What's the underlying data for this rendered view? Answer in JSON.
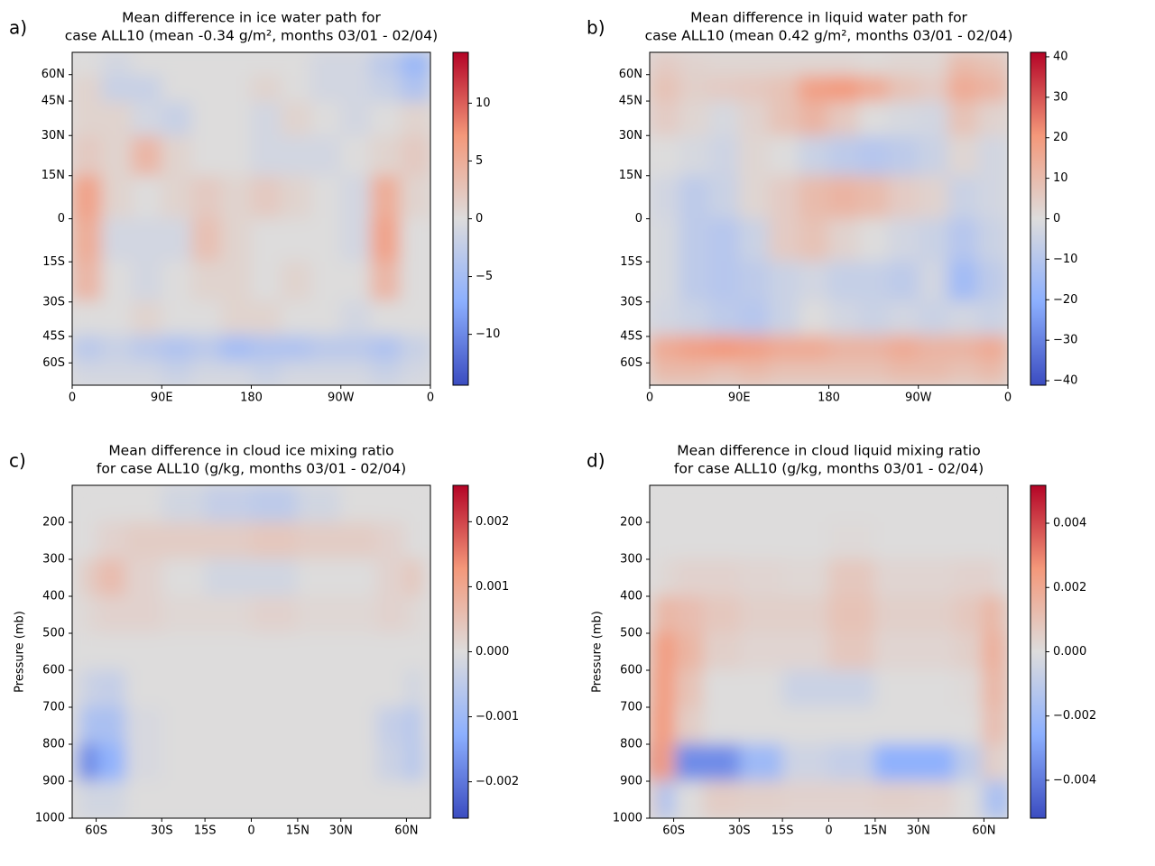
{
  "chart_data": [
    {
      "type": "map",
      "panel_label": "a)",
      "title": [
        "Mean difference in ice water path for",
        "case ALL10 (mean -0.34 g/m², months 03/01 - 02/04)"
      ],
      "projection": "equal-area",
      "x": [
        15,
        45,
        75,
        105,
        135,
        165,
        195,
        225,
        255,
        285,
        315,
        345
      ],
      "y": [
        67.5,
        52.5,
        37.5,
        22.5,
        7.5,
        -7.5,
        -22.5,
        -37.5,
        -52.5,
        -67.5
      ],
      "values": [
        [
          0,
          -1,
          0,
          0,
          0,
          0,
          0,
          0,
          -1,
          -1,
          -3,
          -6
        ],
        [
          1,
          -2,
          -2,
          0,
          0,
          0,
          1,
          0,
          -1,
          -1,
          -2,
          -4
        ],
        [
          1,
          1,
          -1,
          -2,
          0,
          0,
          -1,
          1,
          0,
          -1,
          0,
          1
        ],
        [
          2,
          1,
          4,
          1,
          0,
          0,
          -1,
          -1,
          -1,
          0,
          1,
          2
        ],
        [
          6,
          1,
          0,
          1,
          2,
          1,
          2,
          1,
          0,
          -1,
          5,
          1
        ],
        [
          5,
          -1,
          -1,
          -1,
          3,
          1,
          0,
          0,
          0,
          -1,
          6,
          0
        ],
        [
          4,
          0,
          -1,
          0,
          1,
          1,
          0,
          1,
          0,
          0,
          4,
          0
        ],
        [
          0,
          0,
          1,
          0,
          0,
          1,
          1,
          0,
          0,
          -1,
          0,
          0
        ],
        [
          -3,
          -2,
          -3,
          -4,
          -3,
          -5,
          -4,
          -4,
          -3,
          -3,
          -4,
          -2
        ],
        [
          -1,
          -1,
          -1,
          -2,
          -1,
          -1,
          -2,
          -1,
          -1,
          -1,
          -2,
          -1
        ]
      ],
      "xlim": [
        0,
        360
      ],
      "ylim": [
        -90,
        90
      ],
      "xticks": [
        0,
        {
          "value": 90,
          "label": "90E"
        },
        180,
        {
          "value": 270,
          "label": "90W"
        },
        {
          "value": 360,
          "label": "0"
        }
      ],
      "yticks": [
        {
          "value": 60,
          "label": "60N"
        },
        {
          "value": 45,
          "label": "45N"
        },
        {
          "value": 30,
          "label": "30N"
        },
        {
          "value": 15,
          "label": "15N"
        },
        0,
        {
          "value": -15,
          "label": "15S"
        },
        {
          "value": -30,
          "label": "30S"
        },
        {
          "value": -45,
          "label": "45S"
        },
        {
          "value": -60,
          "label": "60S"
        }
      ],
      "colormap": [
        "#3b4cc0",
        "#8caffe",
        "#dddcdc",
        "#f4987a",
        "#b40426"
      ],
      "clim": [
        -14.4,
        14.4
      ],
      "cticks": [
        10,
        5,
        0,
        {
          "value": -5,
          "label": "−5"
        },
        {
          "value": -10,
          "label": "−10"
        }
      ]
    },
    {
      "type": "map",
      "panel_label": "b)",
      "title": [
        "Mean difference in liquid water path for",
        "case ALL10 (mean 0.42 g/m², months 03/01 - 02/04)"
      ],
      "projection": "equal-area",
      "x": [
        15,
        45,
        75,
        105,
        135,
        165,
        195,
        225,
        255,
        285,
        315,
        345
      ],
      "y": [
        67.5,
        52.5,
        37.5,
        22.5,
        7.5,
        -7.5,
        -22.5,
        -37.5,
        -52.5,
        -67.5
      ],
      "values": [
        [
          5,
          3,
          2,
          2,
          2,
          2,
          2,
          1,
          2,
          2,
          10,
          8
        ],
        [
          8,
          4,
          5,
          6,
          8,
          18,
          20,
          15,
          8,
          5,
          15,
          12
        ],
        [
          5,
          2,
          -2,
          3,
          8,
          12,
          6,
          0,
          -2,
          -3,
          8,
          3
        ],
        [
          0,
          -2,
          -4,
          2,
          0,
          -5,
          -8,
          -10,
          -8,
          -5,
          2,
          -3
        ],
        [
          -3,
          -8,
          -5,
          2,
          5,
          10,
          12,
          10,
          5,
          3,
          -5,
          -3
        ],
        [
          -2,
          -8,
          -10,
          -5,
          5,
          8,
          3,
          0,
          -3,
          -5,
          -10,
          -5
        ],
        [
          -2,
          -8,
          -10,
          -8,
          -5,
          -3,
          -6,
          -6,
          -8,
          -3,
          -15,
          -8
        ],
        [
          -3,
          -5,
          -8,
          -10,
          -5,
          0,
          -3,
          -5,
          -3,
          -5,
          -3,
          -5
        ],
        [
          15,
          18,
          20,
          18,
          15,
          15,
          12,
          12,
          15,
          12,
          12,
          15
        ],
        [
          10,
          10,
          8,
          10,
          8,
          8,
          8,
          8,
          10,
          10,
          8,
          10
        ]
      ],
      "xlim": [
        0,
        360
      ],
      "ylim": [
        -90,
        90
      ],
      "xticks": [
        0,
        {
          "value": 90,
          "label": "90E"
        },
        180,
        {
          "value": 270,
          "label": "90W"
        },
        {
          "value": 360,
          "label": "0"
        }
      ],
      "yticks": [
        {
          "value": 60,
          "label": "60N"
        },
        {
          "value": 45,
          "label": "45N"
        },
        {
          "value": 30,
          "label": "30N"
        },
        {
          "value": 15,
          "label": "15N"
        },
        0,
        {
          "value": -15,
          "label": "15S"
        },
        {
          "value": -30,
          "label": "30S"
        },
        {
          "value": -45,
          "label": "45S"
        },
        {
          "value": -60,
          "label": "60S"
        }
      ],
      "colormap": [
        "#3b4cc0",
        "#8caffe",
        "#dddcdc",
        "#f4987a",
        "#b40426"
      ],
      "clim": [
        -41.1,
        41.1
      ],
      "cticks": [
        40,
        30,
        20,
        10,
        0,
        {
          "value": -10,
          "label": "−10"
        },
        {
          "value": -20,
          "label": "−20"
        },
        {
          "value": -30,
          "label": "−30"
        },
        {
          "value": -40,
          "label": "−40"
        }
      ]
    },
    {
      "type": "heatmap",
      "panel_label": "c)",
      "title": [
        "Mean difference in cloud ice mixing ratio",
        "for case ALL10 (g/kg, months 03/01 - 02/04)"
      ],
      "ylabel": "Pressure (mb)",
      "projection": "equal-area",
      "x": [
        -82.5,
        -67.5,
        -52.5,
        -37.5,
        -22.5,
        -7.5,
        7.5,
        22.5,
        37.5,
        52.5,
        67.5,
        82.5
      ],
      "y": [
        150,
        250,
        350,
        450,
        550,
        650,
        750,
        850,
        950
      ],
      "values": [
        [
          0,
          0,
          0,
          0,
          -0.0002,
          -0.0004,
          -0.0005,
          -0.0002,
          0,
          0,
          0,
          0
        ],
        [
          0,
          0,
          0.0002,
          0.0003,
          0.0003,
          0.0003,
          0.0004,
          0.0003,
          0.0003,
          0.0002,
          0,
          0
        ],
        [
          0,
          0.0003,
          0.0006,
          0.0002,
          0,
          -0.0002,
          -0.0002,
          0,
          0,
          0.0002,
          0.0004,
          0
        ],
        [
          0,
          0.0001,
          0.0002,
          0.0002,
          0.0001,
          0.0001,
          0.0002,
          0.0001,
          0.0001,
          0.0002,
          0.0001,
          0
        ],
        [
          0,
          0,
          0,
          0,
          0,
          0,
          0,
          0,
          0,
          0,
          0,
          0
        ],
        [
          0,
          -0.0003,
          -0.0004,
          0,
          0,
          0,
          0,
          0,
          0,
          0,
          -0.0002,
          0
        ],
        [
          0,
          -0.0008,
          -0.0008,
          -0.0001,
          0,
          0,
          0,
          0,
          0,
          -0.0004,
          -0.0006,
          0
        ],
        [
          -0.0004,
          -0.0018,
          -0.0012,
          -0.0001,
          0,
          0,
          0,
          0,
          0,
          -0.0003,
          -0.0006,
          -0.0001
        ],
        [
          0,
          -0.0002,
          -0.0002,
          0,
          0,
          0,
          0,
          0,
          0,
          0,
          0,
          0
        ]
      ],
      "xlim": [
        -90,
        90
      ],
      "ylim": [
        1000,
        100
      ],
      "xticks": [
        {
          "value": -60,
          "label": "60S"
        },
        {
          "value": -30,
          "label": "30S"
        },
        {
          "value": -15,
          "label": "15S"
        },
        0,
        {
          "value": 15,
          "label": "15N"
        },
        {
          "value": 30,
          "label": "30N"
        },
        {
          "value": 60,
          "label": "60N"
        }
      ],
      "yticks": [
        200,
        300,
        400,
        500,
        600,
        700,
        800,
        900,
        1000
      ],
      "colormap": [
        "#3b4cc0",
        "#8caffe",
        "#dddcdc",
        "#f4987a",
        "#b40426"
      ],
      "clim": [
        -0.00256,
        0.00256
      ],
      "cticks": [
        0.002,
        0.001,
        {
          "value": 0,
          "label": "0.000"
        },
        {
          "value": -0.001,
          "label": "−0.001"
        },
        {
          "value": -0.002,
          "label": "−0.002"
        }
      ]
    },
    {
      "type": "heatmap",
      "panel_label": "d)",
      "title": [
        "Mean difference in cloud liquid mixing ratio",
        "for case ALL10 (g/kg, months 03/01 - 02/04)"
      ],
      "ylabel": "Pressure (mb)",
      "projection": "equal-area",
      "x": [
        -82.5,
        -67.5,
        -52.5,
        -37.5,
        -22.5,
        -7.5,
        7.5,
        22.5,
        37.5,
        52.5,
        67.5,
        82.5
      ],
      "y": [
        150,
        250,
        350,
        450,
        550,
        650,
        750,
        850,
        950
      ],
      "values": [
        [
          0,
          0,
          0,
          0,
          0,
          0,
          0,
          0,
          0,
          0,
          0,
          0
        ],
        [
          0,
          0,
          0,
          0,
          0,
          0,
          0.0001,
          0,
          0,
          0,
          0,
          0
        ],
        [
          0,
          0.0002,
          0.0004,
          0.0004,
          0.0003,
          0.0002,
          0.0008,
          0.0003,
          0.0003,
          0.0004,
          0.0004,
          0
        ],
        [
          0.0006,
          0.0015,
          0.0012,
          0.0008,
          0.0005,
          0.0005,
          0.001,
          0.0005,
          0.0005,
          0.0008,
          0.0015,
          0.0008
        ],
        [
          0.0015,
          0.0025,
          0.0015,
          0.0005,
          0.0003,
          0.0003,
          0.0008,
          0.0003,
          0.0003,
          0.0005,
          0.0018,
          0.0012
        ],
        [
          0.0018,
          0.0025,
          0.001,
          0,
          0,
          -0.0006,
          -0.0006,
          0,
          0,
          0.0001,
          0.0015,
          0.0012
        ],
        [
          0.0022,
          0.0025,
          0.0006,
          0,
          0,
          0,
          0,
          0,
          0,
          0,
          0.0012,
          0.001
        ],
        [
          0.0032,
          0.0022,
          -0.0035,
          -0.0035,
          -0.002,
          -0.0005,
          -0.0008,
          -0.0025,
          -0.0025,
          -0.001,
          0.0006,
          0.0003
        ],
        [
          0.0006,
          -0.0015,
          0,
          0.0006,
          0.0005,
          0.0004,
          0.0004,
          0.0005,
          0.0004,
          0,
          -0.0015,
          -0.002
        ]
      ],
      "xlim": [
        -90,
        90
      ],
      "ylim": [
        1000,
        100
      ],
      "xticks": [
        {
          "value": -60,
          "label": "60S"
        },
        {
          "value": -30,
          "label": "30S"
        },
        {
          "value": -15,
          "label": "15S"
        },
        0,
        {
          "value": 15,
          "label": "15N"
        },
        {
          "value": 30,
          "label": "30N"
        },
        {
          "value": 60,
          "label": "60N"
        }
      ],
      "yticks": [
        200,
        300,
        400,
        500,
        600,
        700,
        800,
        900,
        1000
      ],
      "colormap": [
        "#3b4cc0",
        "#8caffe",
        "#dddcdc",
        "#f4987a",
        "#b40426"
      ],
      "clim": [
        -0.00518,
        0.00518
      ],
      "cticks": [
        0.004,
        0.002,
        {
          "value": 0,
          "label": "0.000"
        },
        {
          "value": -0.002,
          "label": "−0.002"
        },
        {
          "value": -0.004,
          "label": "−0.004"
        }
      ]
    }
  ]
}
